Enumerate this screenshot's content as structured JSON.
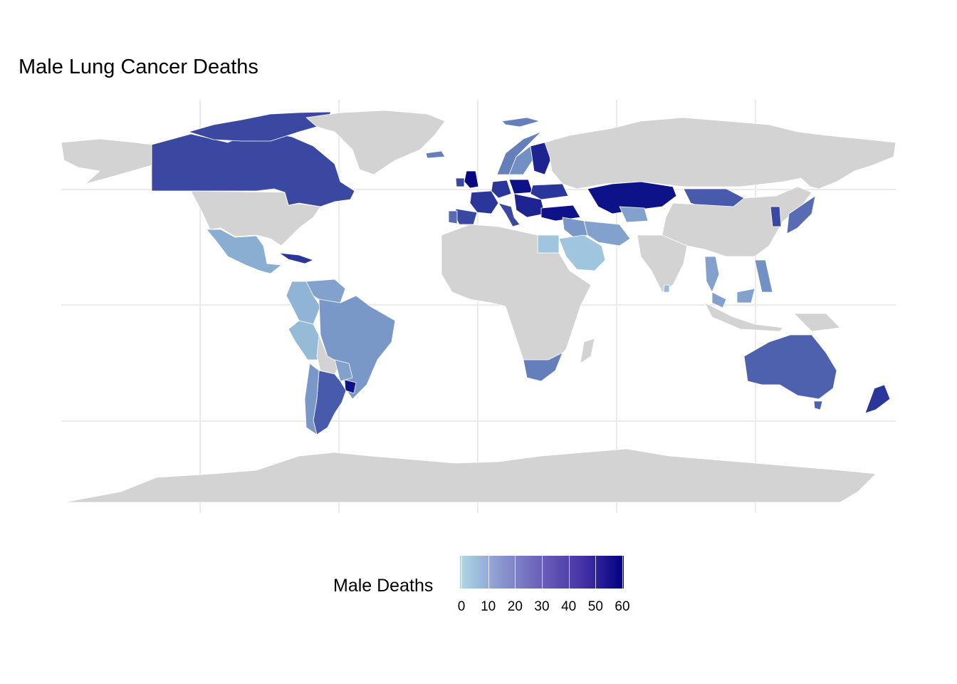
{
  "title": "Male Lung Cancer Deaths",
  "colors": {
    "no_data": "#d3d3d3",
    "scale_low": "#add8e6",
    "scale_high": "#000080",
    "grid": "#ebebeb",
    "border": "#ffffff"
  },
  "legend": {
    "title": "Male Deaths",
    "min": 0,
    "max": 60,
    "ticks": [
      "0",
      "10",
      "20",
      "30",
      "40",
      "50",
      "60"
    ]
  },
  "regions": [
    {
      "name": "Canada",
      "value": 40
    },
    {
      "name": "Greenland",
      "value": null
    },
    {
      "name": "United States",
      "value": null
    },
    {
      "name": "Mexico",
      "value": 12
    },
    {
      "name": "Cuba",
      "value": 45
    },
    {
      "name": "Venezuela",
      "value": 15
    },
    {
      "name": "Colombia",
      "value": 10
    },
    {
      "name": "Peru",
      "value": 8
    },
    {
      "name": "Brazil",
      "value": 18
    },
    {
      "name": "Bolivia",
      "value": null
    },
    {
      "name": "Paraguay",
      "value": 15
    },
    {
      "name": "Uruguay",
      "value": 55
    },
    {
      "name": "Argentina",
      "value": 35
    },
    {
      "name": "Chile",
      "value": 18
    },
    {
      "name": "United Kingdom",
      "value": 58
    },
    {
      "name": "Ireland",
      "value": 40
    },
    {
      "name": "France",
      "value": 45
    },
    {
      "name": "Spain",
      "value": 40
    },
    {
      "name": "Portugal",
      "value": 30
    },
    {
      "name": "Germany",
      "value": 45
    },
    {
      "name": "Poland",
      "value": 55
    },
    {
      "name": "Italy",
      "value": 40
    },
    {
      "name": "Norway",
      "value": 25
    },
    {
      "name": "Sweden",
      "value": 20
    },
    {
      "name": "Finland",
      "value": 50
    },
    {
      "name": "Iceland",
      "value": 25
    },
    {
      "name": "Ukraine",
      "value": 45
    },
    {
      "name": "Balkans",
      "value": 50
    },
    {
      "name": "Turkey",
      "value": 55
    },
    {
      "name": "Russia",
      "value": null
    },
    {
      "name": "Svalbard",
      "value": 25
    },
    {
      "name": "Kazakhstan",
      "value": 55
    },
    {
      "name": "Mongolia",
      "value": 35
    },
    {
      "name": "Iran",
      "value": 15
    },
    {
      "name": "Iraq",
      "value": 18
    },
    {
      "name": "Uzbekistan",
      "value": 15
    },
    {
      "name": "Saudi Arabia",
      "value": 5
    },
    {
      "name": "Egypt",
      "value": 5
    },
    {
      "name": "Africa",
      "value": null
    },
    {
      "name": "South Africa",
      "value": 25
    },
    {
      "name": "Madagascar",
      "value": null
    },
    {
      "name": "India",
      "value": null
    },
    {
      "name": "Sri Lanka",
      "value": 8
    },
    {
      "name": "China",
      "value": null
    },
    {
      "name": "Korea",
      "value": 40
    },
    {
      "name": "Japan",
      "value": 30
    },
    {
      "name": "Thailand",
      "value": 15
    },
    {
      "name": "Philippines",
      "value": 20
    },
    {
      "name": "Malaysia",
      "value": 15
    },
    {
      "name": "Indonesia",
      "value": null
    },
    {
      "name": "Papua New Guinea",
      "value": null
    },
    {
      "name": "Australia",
      "value": 33
    },
    {
      "name": "Tasmania",
      "value": 33
    },
    {
      "name": "New Zealand",
      "value": 45
    },
    {
      "name": "Antarctica",
      "value": null
    }
  ]
}
